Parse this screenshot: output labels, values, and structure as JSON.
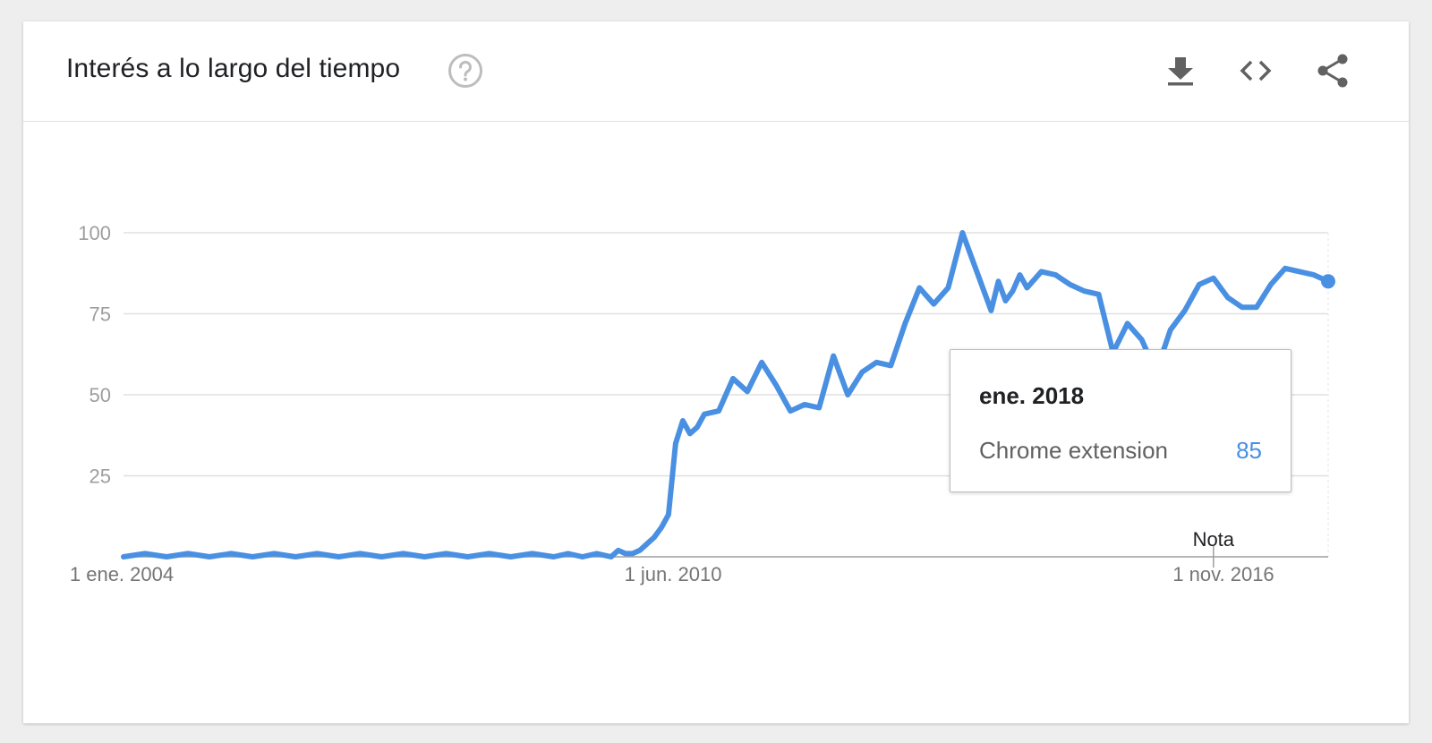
{
  "header": {
    "title": "Interés a lo largo del tiempo"
  },
  "icons": {
    "help": "help-circle-icon",
    "download": "download-icon",
    "embed": "code-embed-icon",
    "share": "share-icon"
  },
  "colors": {
    "line": "#4a90e2",
    "grid": "#e0e0e0",
    "axis": "#9e9e9e"
  },
  "chart_data": {
    "type": "line",
    "title": "Interés a lo largo del tiempo",
    "xlabel": "",
    "ylabel": "",
    "ylim": [
      0,
      100
    ],
    "yticks": [
      25,
      50,
      75,
      100
    ],
    "xtick_labels": [
      "1 ene. 2004",
      "1 jun. 2010",
      "1 nov. 2016"
    ],
    "x_range": [
      "2004-01",
      "2018-01"
    ],
    "grid": true,
    "legend": "none",
    "annotation": "Nota",
    "series": [
      {
        "name": "Chrome extension",
        "color": "#4a90e2",
        "x": [
          "2004-01",
          "2004-04",
          "2004-07",
          "2004-10",
          "2005-01",
          "2005-04",
          "2005-07",
          "2005-10",
          "2006-01",
          "2006-04",
          "2006-07",
          "2006-10",
          "2007-01",
          "2007-04",
          "2007-07",
          "2007-10",
          "2008-01",
          "2008-04",
          "2008-07",
          "2008-10",
          "2009-01",
          "2009-03",
          "2009-05",
          "2009-07",
          "2009-09",
          "2009-10",
          "2009-11",
          "2009-12",
          "2010-01",
          "2010-02",
          "2010-03",
          "2010-04",
          "2010-05",
          "2010-06",
          "2010-07",
          "2010-08",
          "2010-09",
          "2010-10",
          "2010-12",
          "2011-02",
          "2011-04",
          "2011-06",
          "2011-08",
          "2011-10",
          "2011-12",
          "2012-02",
          "2012-04",
          "2012-06",
          "2012-08",
          "2012-10",
          "2012-12",
          "2013-02",
          "2013-04",
          "2013-06",
          "2013-08",
          "2013-10",
          "2013-12",
          "2014-01",
          "2014-02",
          "2014-03",
          "2014-04",
          "2014-05",
          "2014-06",
          "2014-07",
          "2014-09",
          "2014-11",
          "2015-01",
          "2015-03",
          "2015-05",
          "2015-07",
          "2015-09",
          "2015-11",
          "2016-01",
          "2016-03",
          "2016-05",
          "2016-07",
          "2016-09",
          "2016-11",
          "2017-01",
          "2017-03",
          "2017-05",
          "2017-07",
          "2017-09",
          "2017-11",
          "2018-01"
        ],
        "values": [
          0,
          1,
          0,
          1,
          0,
          1,
          0,
          1,
          0,
          1,
          0,
          1,
          0,
          1,
          0,
          1,
          0,
          1,
          0,
          1,
          0,
          1,
          0,
          1,
          0,
          2,
          1,
          1,
          2,
          4,
          6,
          9,
          13,
          35,
          42,
          38,
          40,
          44,
          45,
          55,
          51,
          60,
          53,
          45,
          47,
          46,
          62,
          50,
          57,
          60,
          59,
          72,
          83,
          78,
          83,
          100,
          88,
          82,
          76,
          85,
          79,
          82,
          87,
          83,
          88,
          87,
          84,
          82,
          81,
          63,
          72,
          67,
          57,
          70,
          76,
          84,
          86,
          80,
          77,
          77,
          84,
          89,
          88,
          87,
          85
        ]
      }
    ],
    "tooltip": {
      "date": "ene. 2018",
      "series": "Chrome extension",
      "value": 85
    }
  }
}
